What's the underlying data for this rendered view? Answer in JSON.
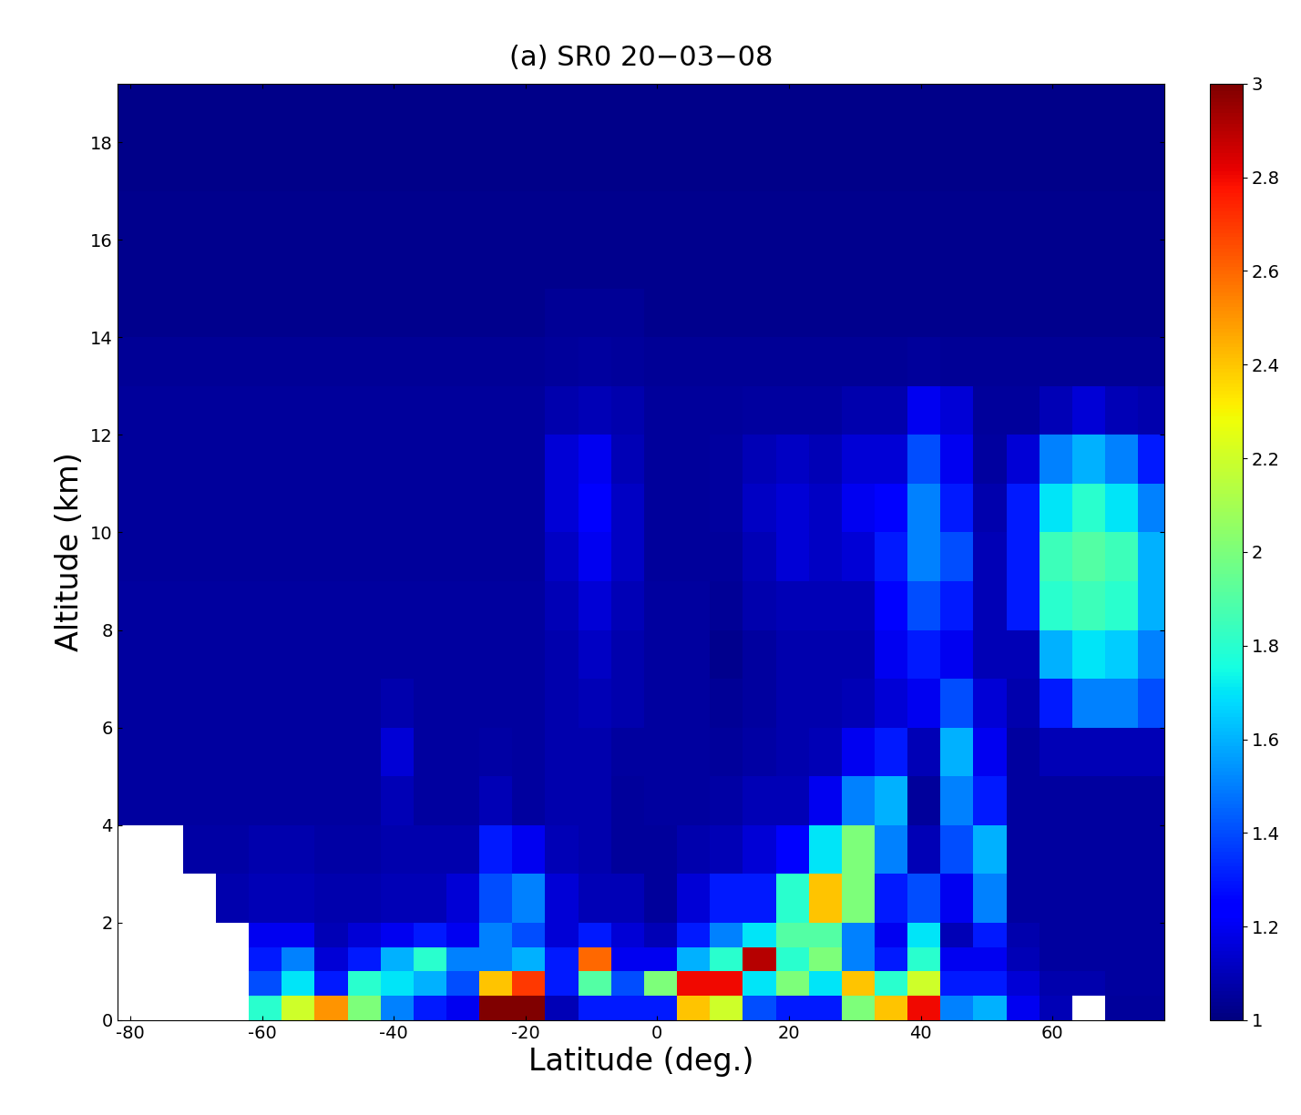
{
  "chart_data": {
    "type": "heatmap",
    "title": "(a) SR0 20−03−08",
    "x_label": "Latitude (deg.)",
    "y_label": "Altitude (km)",
    "xlim": [
      -82,
      77
    ],
    "ylim": [
      0,
      19.2
    ],
    "xticks": [
      -80,
      -60,
      -40,
      -20,
      0,
      20,
      40,
      60
    ],
    "yticks": [
      0,
      2,
      4,
      6,
      8,
      10,
      12,
      14,
      16,
      18
    ],
    "x_edges": [
      -82,
      -77,
      -72,
      -67,
      -62,
      -57,
      -52,
      -47,
      -42,
      -37,
      -32,
      -27,
      -22,
      -17,
      -12,
      -7,
      -2,
      3,
      8,
      13,
      18,
      23,
      28,
      33,
      38,
      43,
      48,
      53,
      58,
      63,
      68,
      73,
      78
    ],
    "y_edges": [
      0,
      0.5,
      1,
      1.5,
      2,
      3,
      4,
      5,
      6,
      7,
      8,
      9,
      10,
      11,
      12,
      13,
      14,
      15,
      16,
      17,
      18,
      19.2
    ],
    "cells_by_latitude": [
      [
        null,
        null,
        null,
        null,
        null,
        null,
        1.06,
        1.06,
        1.06,
        1.06,
        1.06,
        1.05,
        1.05,
        1.05,
        1.05,
        1.04,
        1.03,
        1.03,
        1.03,
        1.02,
        1.02
      ],
      [
        null,
        null,
        null,
        null,
        null,
        null,
        1.06,
        1.06,
        1.06,
        1.06,
        1.06,
        1.05,
        1.05,
        1.05,
        1.05,
        1.04,
        1.03,
        1.03,
        1.03,
        1.02,
        1.02
      ],
      [
        null,
        null,
        null,
        null,
        null,
        1.07,
        1.06,
        1.06,
        1.06,
        1.06,
        1.06,
        1.05,
        1.05,
        1.05,
        1.05,
        1.04,
        1.03,
        1.03,
        1.03,
        1.02,
        1.02
      ],
      [
        null,
        null,
        null,
        null,
        1.08,
        1.07,
        1.06,
        1.06,
        1.06,
        1.06,
        1.06,
        1.05,
        1.05,
        1.05,
        1.05,
        1.04,
        1.03,
        1.03,
        1.03,
        1.02,
        1.02
      ],
      [
        1.8,
        1.4,
        1.3,
        1.2,
        1.1,
        1.08,
        1.06,
        1.06,
        1.06,
        1.06,
        1.06,
        1.05,
        1.05,
        1.05,
        1.05,
        1.04,
        1.03,
        1.03,
        1.03,
        1.02,
        1.02
      ],
      [
        2.2,
        1.7,
        1.5,
        1.2,
        1.1,
        1.08,
        1.06,
        1.06,
        1.06,
        1.06,
        1.06,
        1.05,
        1.05,
        1.05,
        1.05,
        1.04,
        1.03,
        1.03,
        1.03,
        1.02,
        1.02
      ],
      [
        2.5,
        1.3,
        1.15,
        1.1,
        1.08,
        1.07,
        1.06,
        1.06,
        1.06,
        1.06,
        1.06,
        1.05,
        1.05,
        1.05,
        1.05,
        1.04,
        1.03,
        1.03,
        1.03,
        1.02,
        1.02
      ],
      [
        2.0,
        1.8,
        1.3,
        1.15,
        1.08,
        1.07,
        1.06,
        1.06,
        1.06,
        1.06,
        1.06,
        1.05,
        1.05,
        1.05,
        1.05,
        1.04,
        1.03,
        1.03,
        1.03,
        1.02,
        1.02
      ],
      [
        1.5,
        1.7,
        1.6,
        1.2,
        1.1,
        1.08,
        1.1,
        1.15,
        1.08,
        1.06,
        1.06,
        1.05,
        1.05,
        1.05,
        1.05,
        1.04,
        1.03,
        1.03,
        1.03,
        1.02,
        1.02
      ],
      [
        1.3,
        1.6,
        1.8,
        1.3,
        1.1,
        1.08,
        1.06,
        1.06,
        1.06,
        1.06,
        1.06,
        1.05,
        1.05,
        1.05,
        1.05,
        1.04,
        1.03,
        1.03,
        1.03,
        1.02,
        1.02
      ],
      [
        1.2,
        1.4,
        1.5,
        1.2,
        1.15,
        1.08,
        1.06,
        1.06,
        1.06,
        1.06,
        1.06,
        1.05,
        1.05,
        1.05,
        1.05,
        1.04,
        1.03,
        1.03,
        1.03,
        1.02,
        1.02
      ],
      [
        3.0,
        2.4,
        1.5,
        1.5,
        1.4,
        1.3,
        1.1,
        1.07,
        1.06,
        1.06,
        1.06,
        1.05,
        1.05,
        1.05,
        1.05,
        1.04,
        1.03,
        1.03,
        1.03,
        1.02,
        1.02
      ],
      [
        3.0,
        2.7,
        1.6,
        1.4,
        1.5,
        1.2,
        1.06,
        1.06,
        1.06,
        1.06,
        1.06,
        1.05,
        1.05,
        1.05,
        1.05,
        1.04,
        1.03,
        1.03,
        1.03,
        1.02,
        1.02
      ],
      [
        1.1,
        1.3,
        1.3,
        1.15,
        1.15,
        1.1,
        1.08,
        1.08,
        1.08,
        1.08,
        1.1,
        1.12,
        1.15,
        1.15,
        1.08,
        1.05,
        1.04,
        1.03,
        1.03,
        1.02,
        1.02
      ],
      [
        1.3,
        1.9,
        2.6,
        1.3,
        1.1,
        1.08,
        1.08,
        1.08,
        1.1,
        1.12,
        1.15,
        1.2,
        1.22,
        1.2,
        1.1,
        1.06,
        1.04,
        1.03,
        1.03,
        1.02,
        1.02
      ],
      [
        1.3,
        1.4,
        1.2,
        1.15,
        1.1,
        1.05,
        1.05,
        1.06,
        1.08,
        1.08,
        1.1,
        1.12,
        1.12,
        1.1,
        1.08,
        1.05,
        1.04,
        1.03,
        1.03,
        1.02,
        1.02
      ],
      [
        1.3,
        2.0,
        1.2,
        1.1,
        1.05,
        1.05,
        1.06,
        1.06,
        1.06,
        1.06,
        1.06,
        1.05,
        1.05,
        1.05,
        1.05,
        1.04,
        1.03,
        1.03,
        1.03,
        1.02,
        1.02
      ],
      [
        2.4,
        2.8,
        1.6,
        1.3,
        1.15,
        1.08,
        1.06,
        1.06,
        1.06,
        1.06,
        1.06,
        1.05,
        1.05,
        1.05,
        1.05,
        1.04,
        1.03,
        1.03,
        1.03,
        1.02,
        1.02
      ],
      [
        2.2,
        2.8,
        1.8,
        1.5,
        1.3,
        1.1,
        1.07,
        1.05,
        1.04,
        1.03,
        1.04,
        1.05,
        1.06,
        1.06,
        1.05,
        1.04,
        1.03,
        1.03,
        1.03,
        1.02,
        1.02
      ],
      [
        1.4,
        1.7,
        2.9,
        1.7,
        1.3,
        1.15,
        1.1,
        1.07,
        1.06,
        1.06,
        1.08,
        1.1,
        1.12,
        1.1,
        1.06,
        1.04,
        1.03,
        1.03,
        1.03,
        1.02,
        1.02
      ],
      [
        1.3,
        2.0,
        1.8,
        1.9,
        1.8,
        1.25,
        1.1,
        1.08,
        1.08,
        1.08,
        1.1,
        1.15,
        1.15,
        1.12,
        1.06,
        1.04,
        1.03,
        1.03,
        1.03,
        1.02,
        1.02
      ],
      [
        1.3,
        1.7,
        2.0,
        1.9,
        2.4,
        1.7,
        1.2,
        1.1,
        1.08,
        1.08,
        1.1,
        1.12,
        1.12,
        1.1,
        1.06,
        1.04,
        1.03,
        1.03,
        1.03,
        1.02,
        1.02
      ],
      [
        2.0,
        2.4,
        1.5,
        1.5,
        2.0,
        2.0,
        1.5,
        1.2,
        1.1,
        1.08,
        1.1,
        1.15,
        1.2,
        1.15,
        1.08,
        1.04,
        1.03,
        1.03,
        1.03,
        1.02,
        1.02
      ],
      [
        2.4,
        1.8,
        1.3,
        1.2,
        1.3,
        1.5,
        1.6,
        1.3,
        1.15,
        1.2,
        1.25,
        1.3,
        1.25,
        1.15,
        1.08,
        1.04,
        1.03,
        1.03,
        1.03,
        1.02,
        1.02
      ],
      [
        2.8,
        2.2,
        1.8,
        1.7,
        1.4,
        1.1,
        1.05,
        1.1,
        1.2,
        1.3,
        1.4,
        1.5,
        1.5,
        1.4,
        1.2,
        1.05,
        1.03,
        1.03,
        1.03,
        1.02,
        1.02
      ],
      [
        1.5,
        1.3,
        1.2,
        1.1,
        1.2,
        1.4,
        1.5,
        1.6,
        1.4,
        1.2,
        1.3,
        1.4,
        1.3,
        1.2,
        1.15,
        1.04,
        1.03,
        1.03,
        1.03,
        1.02,
        1.02
      ],
      [
        1.6,
        1.3,
        1.2,
        1.3,
        1.5,
        1.6,
        1.3,
        1.2,
        1.15,
        1.1,
        1.1,
        1.1,
        1.08,
        1.06,
        1.05,
        1.04,
        1.03,
        1.03,
        1.03,
        1.02,
        1.02
      ],
      [
        1.2,
        1.15,
        1.1,
        1.08,
        1.06,
        1.06,
        1.06,
        1.06,
        1.08,
        1.1,
        1.3,
        1.3,
        1.3,
        1.15,
        1.05,
        1.04,
        1.03,
        1.03,
        1.03,
        1.02,
        1.02
      ],
      [
        1.1,
        1.08,
        1.06,
        1.06,
        1.06,
        1.06,
        1.06,
        1.1,
        1.3,
        1.6,
        1.8,
        1.85,
        1.7,
        1.5,
        1.1,
        1.04,
        1.03,
        1.03,
        1.03,
        1.02,
        1.02
      ],
      [
        null,
        1.08,
        1.06,
        1.06,
        1.06,
        1.06,
        1.06,
        1.1,
        1.5,
        1.7,
        1.85,
        1.9,
        1.8,
        1.6,
        1.15,
        1.04,
        1.03,
        1.03,
        1.03,
        1.02,
        1.02
      ],
      [
        1.05,
        1.06,
        1.06,
        1.06,
        1.06,
        1.06,
        1.06,
        1.1,
        1.5,
        1.65,
        1.8,
        1.85,
        1.7,
        1.5,
        1.1,
        1.04,
        1.03,
        1.03,
        1.03,
        1.02,
        1.02
      ],
      [
        1.05,
        1.06,
        1.06,
        1.06,
        1.06,
        1.06,
        1.06,
        1.1,
        1.4,
        1.5,
        1.6,
        1.6,
        1.5,
        1.3,
        1.08,
        1.04,
        1.03,
        1.03,
        1.03,
        1.02,
        1.02
      ]
    ],
    "colorbar_range": [
      1,
      3
    ],
    "colorbar_ticks": [
      1,
      1.2,
      1.4,
      1.6,
      1.8,
      2,
      2.2,
      2.4,
      2.6,
      2.8,
      3
    ]
  }
}
